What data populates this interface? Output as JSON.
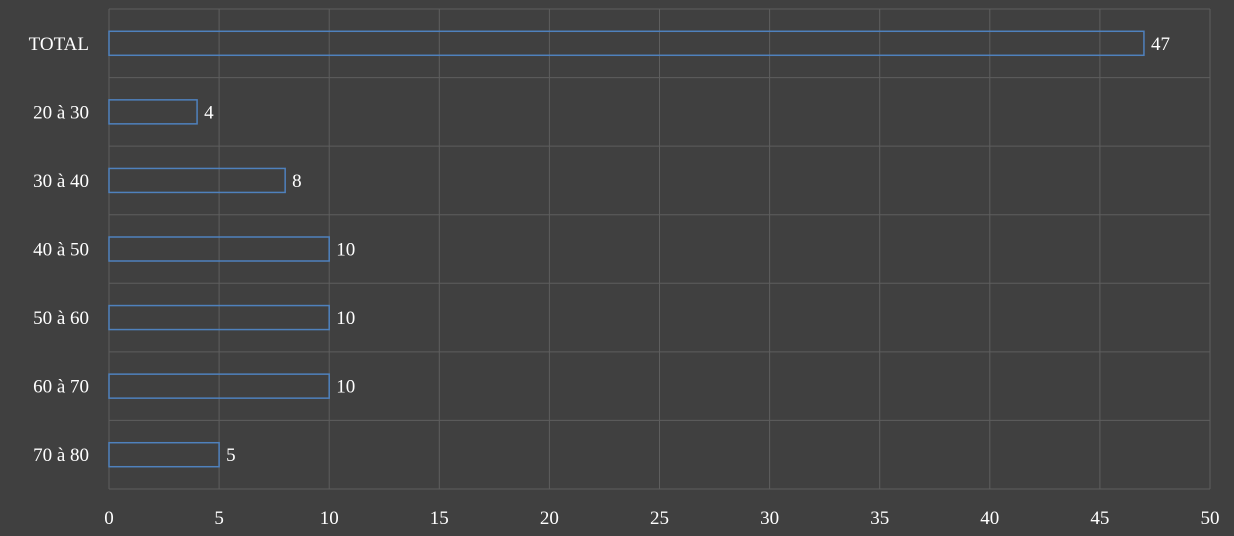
{
  "chart_data": {
    "type": "bar",
    "orientation": "horizontal",
    "categories": [
      "TOTAL",
      "20 à 30",
      "30 à 40",
      "40 à 50",
      "50 à 60",
      "60 à 70",
      "70 à 80"
    ],
    "values": [
      47,
      4,
      8,
      10,
      10,
      10,
      5
    ],
    "data_labels": [
      "47",
      "4",
      "8",
      "10",
      "10",
      "10",
      "5"
    ],
    "xlim": [
      0,
      50
    ],
    "x_ticks": [
      0,
      5,
      10,
      15,
      20,
      25,
      30,
      35,
      40,
      45,
      50
    ],
    "x_tick_labels": [
      "0",
      "5",
      "10",
      "15",
      "20",
      "25",
      "30",
      "35",
      "40",
      "45",
      "50"
    ],
    "title": "",
    "xlabel": "",
    "ylabel": "",
    "grid": true,
    "legend": "none"
  },
  "colors": {
    "background": "#404040",
    "bar_outline": "#4f81bd",
    "bar_fill": "none",
    "gridline": "#5e5e5e",
    "text": "#ffffff"
  }
}
